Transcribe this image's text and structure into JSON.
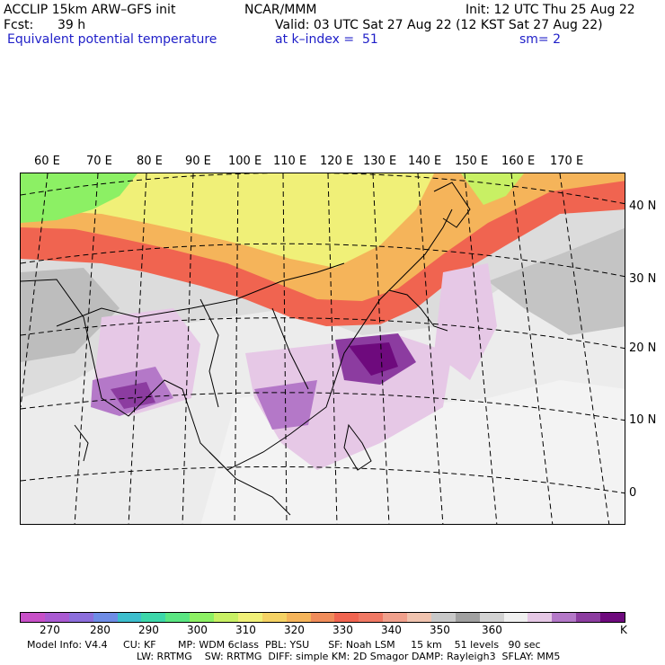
{
  "header": {
    "model": "ACCLIP 15km ARW–GFS init",
    "center": "NCAR/MMM",
    "init": "Init: 12 UTC Thu 25 Aug 22",
    "fcst_label": "Fcst:",
    "fcst_value": "39 h",
    "valid": "Valid: 03 UTC Sat 27 Aug 22 (12 KST Sat 27 Aug 22)",
    "field": "Equivalent potential temperature",
    "level": "at k–index =  51",
    "smooth": "sm= 2"
  },
  "map": {
    "lon_labels": [
      "60 E",
      "70 E",
      "80 E",
      "90 E",
      "100 E",
      "110 E",
      "120 E",
      "130 E",
      "140 E",
      "150 E",
      "160 E",
      "170 E"
    ],
    "lat_labels": [
      "40 N",
      "30 N",
      "20 N",
      "10 N",
      "0"
    ]
  },
  "colorbar": {
    "colors": [
      "#c850c8",
      "#aa5ad2",
      "#8c6edc",
      "#6e8ce6",
      "#3cbecd",
      "#3cd7aa",
      "#5ae682",
      "#8cf064",
      "#c8f064",
      "#f0f078",
      "#f5d264",
      "#f5b45a",
      "#f08c5a",
      "#f06450",
      "#f07864",
      "#f0a08c",
      "#f0c3af",
      "#c8c8c8",
      "#a0a0a0",
      "#d2d2d2",
      "#f0f0f0",
      "#e6c8e6",
      "#b478c8",
      "#8c3ca0",
      "#6e0a7d"
    ],
    "tick_labels": [
      "270",
      "280",
      "290",
      "300",
      "310",
      "320",
      "330",
      "340",
      "350",
      "360"
    ],
    "unit": "K"
  },
  "footer": {
    "line1": "Model Info: V4.4     CU: KF       MP: WDM 6class  PBL: YSU      SF: Noah LSM     15 km    51 levels   90 sec",
    "line2": "LW: RRTMG    SW: RRTMG  DIFF: simple KM: 2D Smagor DAMP: Rayleigh3  SFLAY: MM5"
  }
}
